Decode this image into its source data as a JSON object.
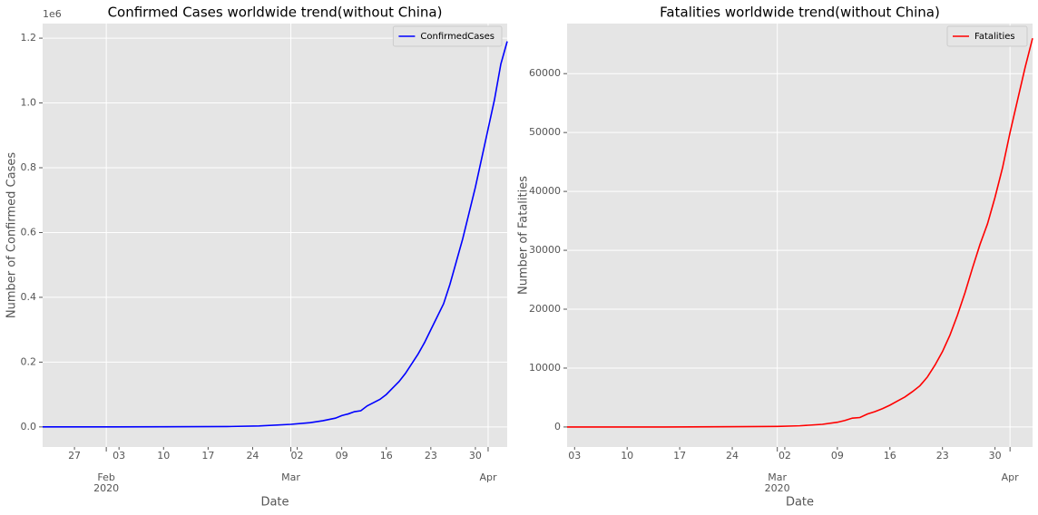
{
  "chart_data": [
    {
      "type": "line",
      "title": "Confirmed Cases worldwide trend(without China)",
      "xlabel": "Date",
      "ylabel": "Number of Confirmed Cases",
      "x": [
        "2020-01-22",
        "2020-02-01",
        "2020-02-10",
        "2020-02-20",
        "2020-02-25",
        "2020-03-01",
        "2020-03-04",
        "2020-03-06",
        "2020-03-08",
        "2020-03-09",
        "2020-03-10",
        "2020-03-11",
        "2020-03-12",
        "2020-03-13",
        "2020-03-14",
        "2020-03-15",
        "2020-03-16",
        "2020-03-17",
        "2020-03-18",
        "2020-03-19",
        "2020-03-20",
        "2020-03-21",
        "2020-03-22",
        "2020-03-23",
        "2020-03-24",
        "2020-03-25",
        "2020-03-26",
        "2020-03-27",
        "2020-03-28",
        "2020-03-29",
        "2020-03-30",
        "2020-03-31",
        "2020-04-01",
        "2020-04-02",
        "2020-04-03",
        "2020-04-04"
      ],
      "series": [
        {
          "name": "ConfirmedCases",
          "color": "#0000ff",
          "values": [
            7,
            150,
            450,
            1100,
            2900,
            8000,
            13000,
            19000,
            27000,
            35000,
            40000,
            47000,
            50000,
            65000,
            75000,
            85000,
            100000,
            120000,
            140000,
            165000,
            195000,
            225000,
            260000,
            300000,
            340000,
            380000,
            440000,
            510000,
            580000,
            660000,
            740000,
            830000,
            920000,
            1010000,
            1120000,
            1190000
          ]
        }
      ],
      "xlim": [
        "2020-01-22",
        "2020-04-04"
      ],
      "xticks": [
        {
          "value": "2020-01-27",
          "label": "27"
        },
        {
          "value": "2020-02-03",
          "label": "03"
        },
        {
          "value": "2020-02-10",
          "label": "10"
        },
        {
          "value": "2020-02-17",
          "label": "17"
        },
        {
          "value": "2020-02-24",
          "label": "24"
        },
        {
          "value": "2020-03-02",
          "label": "02"
        },
        {
          "value": "2020-03-09",
          "label": "09"
        },
        {
          "value": "2020-03-16",
          "label": "16"
        },
        {
          "value": "2020-03-23",
          "label": "23"
        },
        {
          "value": "2020-03-30",
          "label": "30"
        }
      ],
      "month_ticks": [
        {
          "value": "2020-02-01",
          "label": "Feb",
          "year": "2020"
        },
        {
          "value": "2020-03-01",
          "label": "Mar"
        },
        {
          "value": "2020-04-01",
          "label": "Apr"
        }
      ],
      "ylim": [
        -62000,
        1245000
      ],
      "yticks": [
        {
          "value": 0,
          "label": "0.0"
        },
        {
          "value": 200000,
          "label": "0.2"
        },
        {
          "value": 400000,
          "label": "0.4"
        },
        {
          "value": 600000,
          "label": "0.6"
        },
        {
          "value": 800000,
          "label": "0.8"
        },
        {
          "value": 1000000,
          "label": "1.0"
        },
        {
          "value": 1200000,
          "label": "1.2"
        }
      ],
      "y_offset_label": "1e6",
      "grid": true,
      "legend": "upper right"
    },
    {
      "type": "line",
      "title": "Fatalities worldwide trend(without China)",
      "xlabel": "Date",
      "ylabel": "Number of Fatalities",
      "x": [
        "2020-02-02",
        "2020-02-15",
        "2020-02-25",
        "2020-03-01",
        "2020-03-04",
        "2020-03-07",
        "2020-03-09",
        "2020-03-10",
        "2020-03-11",
        "2020-03-12",
        "2020-03-13",
        "2020-03-14",
        "2020-03-15",
        "2020-03-16",
        "2020-03-17",
        "2020-03-18",
        "2020-03-19",
        "2020-03-20",
        "2020-03-21",
        "2020-03-22",
        "2020-03-23",
        "2020-03-24",
        "2020-03-25",
        "2020-03-26",
        "2020-03-27",
        "2020-03-28",
        "2020-03-29",
        "2020-03-30",
        "2020-03-31",
        "2020-04-01",
        "2020-04-02",
        "2020-04-03",
        "2020-04-04"
      ],
      "series": [
        {
          "name": "Fatalities",
          "color": "#ff0000",
          "values": [
            1,
            3,
            50,
            100,
            200,
            450,
            800,
            1100,
            1500,
            1600,
            2200,
            2600,
            3100,
            3700,
            4400,
            5100,
            6000,
            7000,
            8500,
            10500,
            12800,
            15600,
            19000,
            22800,
            27000,
            31000,
            34500,
            39000,
            44000,
            50000,
            55500,
            61000,
            66000
          ]
        }
      ],
      "xlim": [
        "2020-02-02",
        "2020-04-04"
      ],
      "xticks": [
        {
          "value": "2020-02-03",
          "label": "03"
        },
        {
          "value": "2020-02-10",
          "label": "10"
        },
        {
          "value": "2020-02-17",
          "label": "17"
        },
        {
          "value": "2020-02-24",
          "label": "24"
        },
        {
          "value": "2020-03-02",
          "label": "02"
        },
        {
          "value": "2020-03-09",
          "label": "09"
        },
        {
          "value": "2020-03-16",
          "label": "16"
        },
        {
          "value": "2020-03-23",
          "label": "23"
        },
        {
          "value": "2020-03-30",
          "label": "30"
        }
      ],
      "month_ticks": [
        {
          "value": "2020-03-01",
          "label": "Mar",
          "year": "2020"
        },
        {
          "value": "2020-04-01",
          "label": "Apr"
        }
      ],
      "ylim": [
        -3400,
        68500
      ],
      "yticks": [
        0,
        10000,
        20000,
        30000,
        40000,
        50000,
        60000
      ],
      "grid": true,
      "legend": "upper right"
    }
  ]
}
